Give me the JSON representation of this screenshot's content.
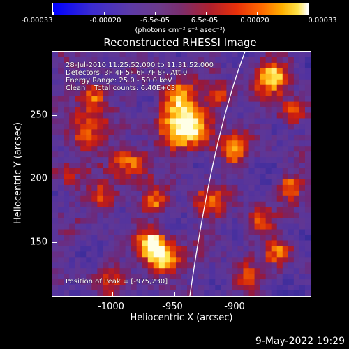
{
  "colorbar": {
    "labels": [
      "-0.00033",
      "-0.00020",
      "-6.5e-05",
      "6.5e-05",
      "0.00020",
      "0.00033"
    ],
    "units": "(photons cm⁻² s⁻¹ asec⁻²)"
  },
  "title": "Reconstructed RHESSI Image",
  "info": {
    "time": "28-Jul-2010 11:25:52.000 to 11:31:52.000",
    "detectors": "Detectors: 3F 4F 5F 6F 7F 8F, Att 0",
    "energy": "Energy Range: 25.0 - 50.0 keV",
    "clean": "Clean    Total counts: 6.40E+03",
    "peak": "Position of Peak = [-975,230]"
  },
  "axes": {
    "x_title": "Heliocentric X (arcsec)",
    "y_title": "Heliocentric Y (arcsec)",
    "x_ticks": [
      "-1000",
      "-950",
      "-900"
    ],
    "y_ticks": [
      "250",
      "200",
      "150"
    ]
  },
  "footer": {
    "date": "9-May-2022 19:29"
  },
  "colors": {
    "background": "#000000",
    "frame": "#ffffff",
    "limb_line": "#ffffff"
  }
}
